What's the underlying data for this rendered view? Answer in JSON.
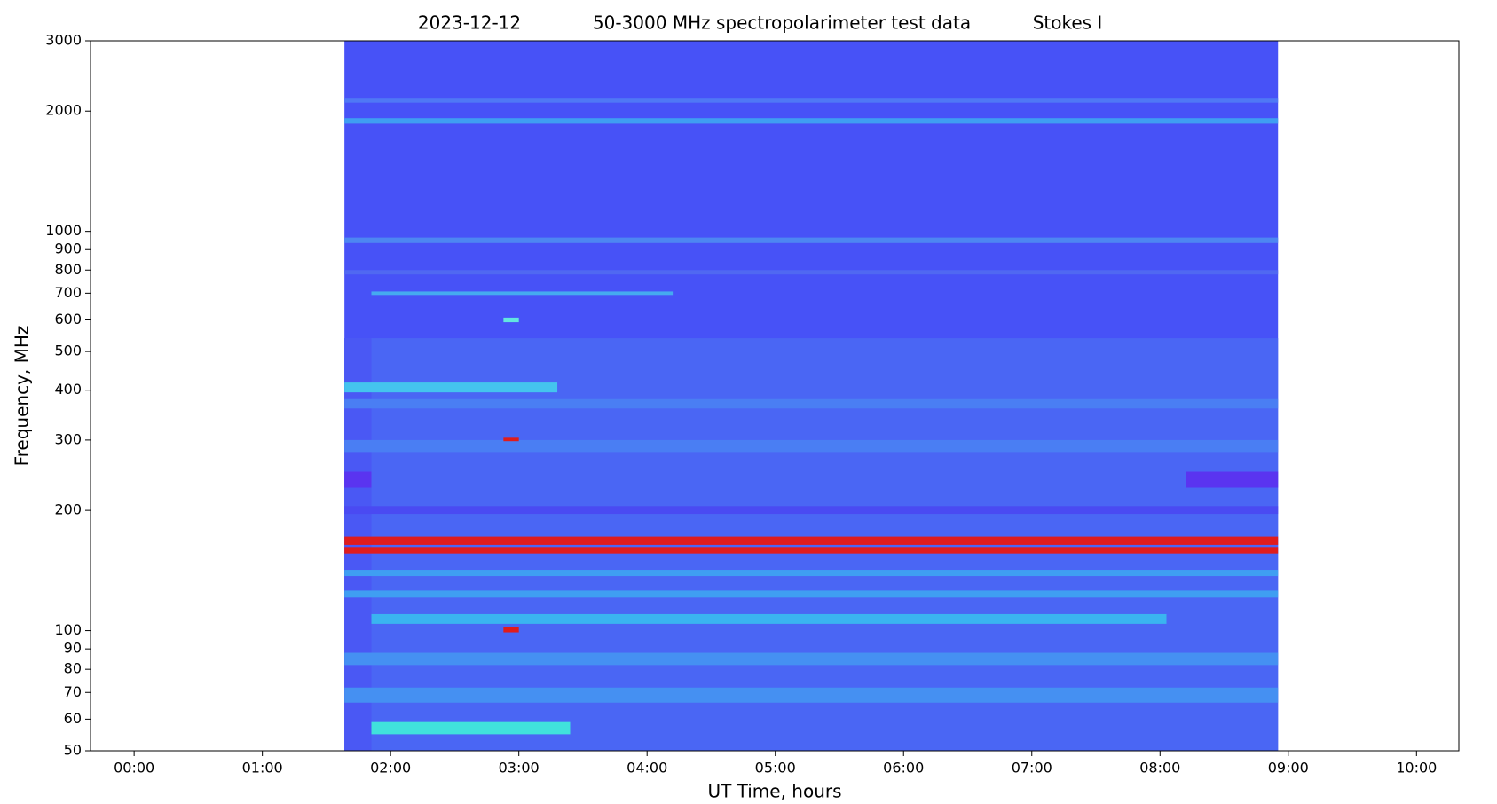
{
  "chart_data": {
    "type": "spectrogram",
    "title": [
      "2023-12-12",
      "50-3000 MHz spectropolarimeter test data",
      "Stokes I"
    ],
    "xlabel": "UT Time, hours",
    "ylabel": "Frequency, MHz",
    "xlim": [
      -0.34,
      10.33
    ],
    "xticks": [
      {
        "value": 0,
        "label": "00:00"
      },
      {
        "value": 1,
        "label": "01:00"
      },
      {
        "value": 2,
        "label": "02:00"
      },
      {
        "value": 3,
        "label": "03:00"
      },
      {
        "value": 4,
        "label": "04:00"
      },
      {
        "value": 5,
        "label": "05:00"
      },
      {
        "value": 6,
        "label": "06:00"
      },
      {
        "value": 7,
        "label": "07:00"
      },
      {
        "value": 8,
        "label": "08:00"
      },
      {
        "value": 9,
        "label": "09:00"
      },
      {
        "value": 10,
        "label": "10:00"
      }
    ],
    "ylim": [
      50,
      3000
    ],
    "yticks": [
      50,
      60,
      70,
      80,
      90,
      100,
      200,
      300,
      400,
      500,
      600,
      700,
      800,
      900,
      1000,
      2000,
      3000
    ],
    "log_y": true,
    "data_x": [
      1.64,
      8.92
    ],
    "background_color": "#4752f7",
    "bands": [
      {
        "x": [
          1.64,
          8.92
        ],
        "y": [
          50,
          540
        ],
        "color": "#4a66f4"
      },
      {
        "x": [
          1.64,
          1.85
        ],
        "y": [
          50,
          540
        ],
        "color": "#4a58f4"
      },
      {
        "x": [
          1.64,
          8.92
        ],
        "y": [
          1860,
          1920
        ],
        "color": "#3f9ef2"
      },
      {
        "x": [
          1.64,
          8.92
        ],
        "y": [
          2100,
          2160
        ],
        "color": "#4f78f5"
      },
      {
        "x": [
          1.64,
          8.92
        ],
        "y": [
          935,
          965
        ],
        "color": "#4d86f2"
      },
      {
        "x": [
          1.64,
          8.92
        ],
        "y": [
          780,
          800
        ],
        "color": "#5068f2"
      },
      {
        "x": [
          1.85,
          4.2
        ],
        "y": [
          693,
          707
        ],
        "color": "#45aaf0"
      },
      {
        "x": [
          2.88,
          3.0
        ],
        "y": [
          592,
          608
        ],
        "color": "#62e6e0"
      },
      {
        "x": [
          1.64,
          3.3
        ],
        "y": [
          395,
          418
        ],
        "color": "#44c4ee"
      },
      {
        "x": [
          1.64,
          8.92
        ],
        "y": [
          360,
          380
        ],
        "color": "#4a7ef3"
      },
      {
        "x": [
          1.64,
          8.92
        ],
        "y": [
          280,
          300
        ],
        "color": "#4a7ef3"
      },
      {
        "x": [
          1.64,
          1.85
        ],
        "y": [
          228,
          250
        ],
        "color": "#5a34f0"
      },
      {
        "x": [
          8.2,
          8.92
        ],
        "y": [
          228,
          250
        ],
        "color": "#5a34f0"
      },
      {
        "x": [
          1.64,
          8.92
        ],
        "y": [
          196,
          205
        ],
        "color": "#4a4af2"
      },
      {
        "x": [
          1.64,
          8.92
        ],
        "y": [
          164,
          172
        ],
        "color": "#e01c1c"
      },
      {
        "x": [
          1.64,
          8.92
        ],
        "y": [
          156,
          162
        ],
        "color": "#e01c1c"
      },
      {
        "x": [
          1.64,
          8.92
        ],
        "y": [
          137,
          142
        ],
        "color": "#3f9ef2"
      },
      {
        "x": [
          1.64,
          8.92
        ],
        "y": [
          121,
          126
        ],
        "color": "#3f9ef2"
      },
      {
        "x": [
          1.85,
          8.05
        ],
        "y": [
          104,
          110
        ],
        "color": "#3ab4f0"
      },
      {
        "x": [
          1.64,
          8.92
        ],
        "y": [
          82,
          88
        ],
        "color": "#4590f2"
      },
      {
        "x": [
          1.64,
          8.92
        ],
        "y": [
          66,
          72
        ],
        "color": "#4590f2"
      },
      {
        "x": [
          1.85,
          3.4
        ],
        "y": [
          55,
          59
        ],
        "color": "#40e2dc"
      },
      {
        "x": [
          2.88,
          3.0
        ],
        "y": [
          298,
          304
        ],
        "color": "#e01c1c"
      },
      {
        "x": [
          2.88,
          3.0
        ],
        "y": [
          99,
          102
        ],
        "color": "#e01c1c"
      }
    ]
  }
}
